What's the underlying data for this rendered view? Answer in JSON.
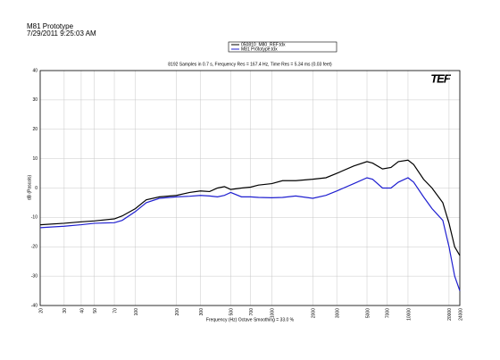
{
  "header": {
    "title": "M81 Prototype",
    "timestamp": "7/29/2011 9:25:03 AM"
  },
  "chart_data": {
    "type": "line",
    "title": "8192 Samples in 0.7 s, Frequency Res = 167.4 Hz, Time Res = 5.34 ms (0.03 feet)",
    "logo": "TEF",
    "x_label": "Frequency (Hz) Octave Smoothing = 33.0 %",
    "y_label": "dB (Pascals)",
    "x_scale": "log",
    "grid": true,
    "legend": "top",
    "xlim": [
      20,
      24000
    ],
    "ylim": [
      -40,
      40
    ],
    "xticks": [
      20,
      30,
      40,
      50,
      70,
      100,
      200,
      300,
      500,
      700,
      1000,
      2000,
      3000,
      5000,
      7000,
      10000,
      20000,
      24000
    ],
    "yticks": [
      40,
      30,
      20,
      10,
      0,
      -10,
      -20,
      -30,
      -40
    ],
    "x": [
      20,
      30,
      40,
      50,
      70,
      80,
      100,
      120,
      150,
      200,
      250,
      300,
      350,
      400,
      450,
      500,
      600,
      700,
      800,
      1000,
      1200,
      1500,
      2000,
      2500,
      3000,
      4000,
      5000,
      5500,
      6500,
      7500,
      8500,
      10000,
      11000,
      13000,
      15000,
      18000,
      20000,
      22000,
      24000
    ],
    "series": [
      {
        "name": "050810_M80_REF.tdx",
        "color": "#000000",
        "values": [
          -12.5,
          -12,
          -11.5,
          -11.2,
          -10.5,
          -9.5,
          -7,
          -4,
          -3,
          -2.5,
          -1.5,
          -1,
          -1.2,
          0,
          0.5,
          -0.5,
          0,
          0.3,
          1,
          1.5,
          2.5,
          2.5,
          3,
          3.5,
          5,
          7.5,
          9,
          8.5,
          6.5,
          7,
          9,
          9.5,
          8,
          3,
          0,
          -5,
          -12,
          -20,
          -23
        ]
      },
      {
        "name": "M81 Prototype.tdx",
        "color": "#1f1fd0",
        "values": [
          -13.5,
          -13,
          -12.5,
          -12,
          -11.8,
          -11,
          -8,
          -5,
          -3.5,
          -3,
          -2.8,
          -2.5,
          -2.7,
          -3,
          -2.5,
          -1.5,
          -3,
          -3,
          -3.2,
          -3.3,
          -3.2,
          -2.7,
          -3.5,
          -2.5,
          -1,
          1.5,
          3.5,
          3,
          0,
          0,
          2,
          3.5,
          2,
          -3,
          -7,
          -11,
          -20,
          -30,
          -35
        ]
      }
    ]
  }
}
